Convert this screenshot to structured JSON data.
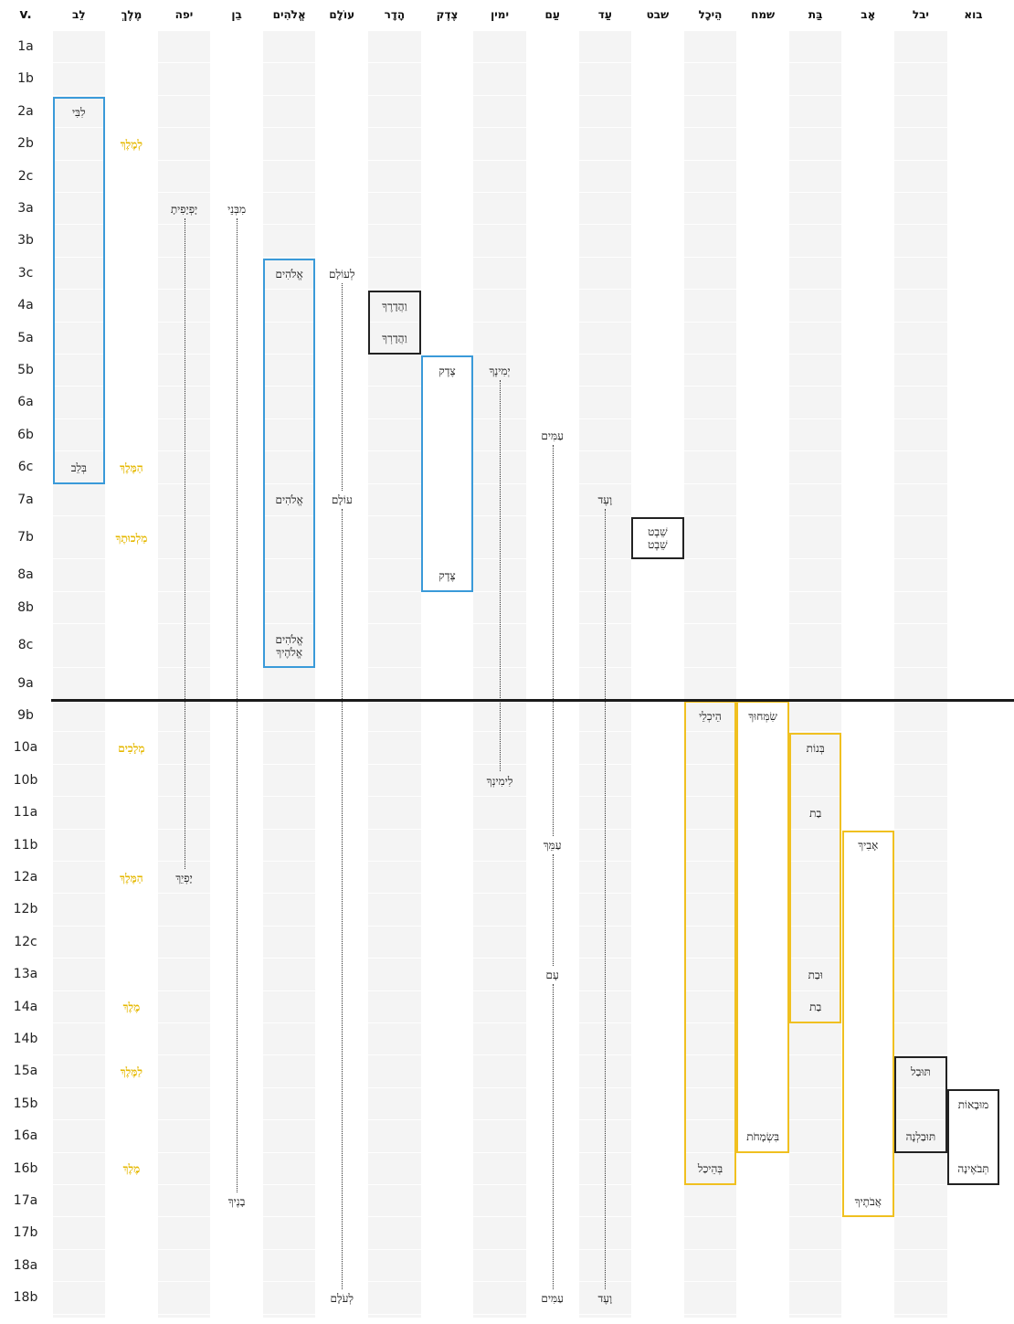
{
  "header": {
    "verse_label": "v.",
    "columns": [
      "לֵב",
      "מֶלֶךְ",
      "יפה",
      "בֵן",
      "אֱלֹהִים",
      "עוֹלָם",
      "הָדָר",
      "צֶדֶק",
      "ימין",
      "עַם",
      "עַד",
      "שבט",
      "הֵיכָל",
      "שמח",
      "בַּת",
      "אָב",
      "יבל",
      "בוא"
    ]
  },
  "verses": [
    "1a",
    "1b",
    "2a",
    "2b",
    "2c",
    "3a",
    "3b",
    "3c",
    "4a",
    "5a",
    "5b",
    "6a",
    "6b",
    "6c",
    "7a",
    "7b",
    "8a",
    "8b",
    "8c",
    "9a",
    "9b",
    "10a",
    "10b",
    "11a",
    "11b",
    "12a",
    "12b",
    "12c",
    "13a",
    "14a",
    "14b",
    "15a",
    "15b",
    "16a",
    "16b",
    "17a",
    "17b",
    "18a",
    "18b"
  ],
  "section_divider_after": "9a",
  "colors": {
    "blue": "#3a9ad9",
    "gold": "#f0c020",
    "black": "#222222",
    "gold_text": "#e5b800"
  },
  "words": [
    {
      "col": 0,
      "verse": "2a",
      "text": "לִבִּי"
    },
    {
      "col": 0,
      "verse": "6c",
      "text": "בְּלֵב"
    },
    {
      "col": 1,
      "verse": "2b",
      "text": "לְמֶלֶךְ",
      "gold": true
    },
    {
      "col": 1,
      "verse": "6c",
      "text": "הַמֶּלֶךְ",
      "gold": true
    },
    {
      "col": 1,
      "verse": "7b",
      "text": "מַלְכוּתֶךָ",
      "gold": true
    },
    {
      "col": 1,
      "verse": "10a",
      "text": "מְלָכִים",
      "gold": true
    },
    {
      "col": 1,
      "verse": "12a",
      "text": "הַמֶּלֶךְ",
      "gold": true
    },
    {
      "col": 1,
      "verse": "14a",
      "text": "מֶלֶךְ",
      "gold": true
    },
    {
      "col": 1,
      "verse": "15a",
      "text": "לַמֶּלֶךְ",
      "gold": true
    },
    {
      "col": 1,
      "verse": "16b",
      "text": "מֶלֶךְ",
      "gold": true
    },
    {
      "col": 2,
      "verse": "3a",
      "text": "יָפְיָפִיתָ"
    },
    {
      "col": 2,
      "verse": "12a",
      "text": "יָפְיֵךְ"
    },
    {
      "col": 3,
      "verse": "3a",
      "text": "מִבְּנֵי"
    },
    {
      "col": 3,
      "verse": "17a",
      "text": "בָנֶיךָ"
    },
    {
      "col": 4,
      "verse": "3c",
      "text": "אֱלֹהִים"
    },
    {
      "col": 4,
      "verse": "7a",
      "text": "אֱלֹהִים"
    },
    {
      "col": 4,
      "verse": "8c",
      "text": "אֱלֹהִים\nאֱלֹהֶיךָ"
    },
    {
      "col": 5,
      "verse": "3c",
      "text": "לְעוֹלָם"
    },
    {
      "col": 5,
      "verse": "7a",
      "text": "עוֹלָם"
    },
    {
      "col": 5,
      "verse": "18b",
      "text": "לְעֹלָם"
    },
    {
      "col": 6,
      "verse": "4a",
      "text": "וַהֲדָרֶךָ"
    },
    {
      "col": 6,
      "verse": "5a",
      "text": "וַהֲדָרְךָ"
    },
    {
      "col": 7,
      "verse": "5b",
      "text": "צֶדֶק"
    },
    {
      "col": 7,
      "verse": "8a",
      "text": "צֶּדֶק"
    },
    {
      "col": 8,
      "verse": "5b",
      "text": "יְמִינֶךָ"
    },
    {
      "col": 8,
      "verse": "10b",
      "text": "לִימִינְךָ"
    },
    {
      "col": 9,
      "verse": "6b",
      "text": "עַמִּים"
    },
    {
      "col": 9,
      "verse": "11b",
      "text": "עַמֵּךְ"
    },
    {
      "col": 9,
      "verse": "13a",
      "text": "עָם"
    },
    {
      "col": 9,
      "verse": "18b",
      "text": "עַמִּים"
    },
    {
      "col": 10,
      "verse": "7a",
      "text": "וָעֶד"
    },
    {
      "col": 10,
      "verse": "18b",
      "text": "וָעֶד"
    },
    {
      "col": 11,
      "verse": "7b",
      "text": "שֵׁבֶט\nשֵׁבֶט"
    },
    {
      "col": 12,
      "verse": "9b",
      "text": "הֵיכְלֵי"
    },
    {
      "col": 12,
      "verse": "16b",
      "text": "בְּהֵיכַל"
    },
    {
      "col": 13,
      "verse": "9b",
      "text": "שִׂמְּחוּךָ"
    },
    {
      "col": 13,
      "verse": "16a",
      "text": "בִּשְׂמָחֹת"
    },
    {
      "col": 14,
      "verse": "10a",
      "text": "בְּנוֹת"
    },
    {
      "col": 14,
      "verse": "11a",
      "text": "בַת"
    },
    {
      "col": 14,
      "verse": "13a",
      "text": "וּבַת"
    },
    {
      "col": 14,
      "verse": "14a",
      "text": "בַת"
    },
    {
      "col": 15,
      "verse": "11b",
      "text": "אָבִיךְ"
    },
    {
      "col": 15,
      "verse": "17a",
      "text": "אֲבֹתֶיךָ"
    },
    {
      "col": 16,
      "verse": "15a",
      "text": "תּוּבַל"
    },
    {
      "col": 16,
      "verse": "16a",
      "text": "תּוּבַלְנָה"
    },
    {
      "col": 17,
      "verse": "15b",
      "text": "מוּבָאוֹת"
    },
    {
      "col": 17,
      "verse": "16b",
      "text": "תְּבֹאֶינָה"
    }
  ],
  "boxes": [
    {
      "col": 0,
      "from": "2a",
      "to": "6c",
      "color": "blue"
    },
    {
      "col": 4,
      "from": "3c",
      "to": "8c",
      "color": "blue"
    },
    {
      "col": 7,
      "from": "5b",
      "to": "8a",
      "color": "blue"
    },
    {
      "col": 6,
      "from": "4a",
      "to": "5a",
      "color": "black"
    },
    {
      "col": 11,
      "from": "7b",
      "to": "7b",
      "color": "black"
    },
    {
      "col": 12,
      "from": "9b",
      "to": "16b",
      "color": "gold"
    },
    {
      "col": 13,
      "from": "9b",
      "to": "16a",
      "color": "gold"
    },
    {
      "col": 14,
      "from": "10a",
      "to": "14a",
      "color": "gold"
    },
    {
      "col": 15,
      "from": "11b",
      "to": "17a",
      "color": "gold"
    },
    {
      "col": 16,
      "from": "15a",
      "to": "16a",
      "color": "black"
    },
    {
      "col": 17,
      "from": "15b",
      "to": "16b",
      "color": "black"
    }
  ],
  "connectors": [
    {
      "col": 2,
      "from": "3a",
      "to": "12a"
    },
    {
      "col": 3,
      "from": "3a",
      "to": "17a"
    },
    {
      "col": 5,
      "from": "3c",
      "to": "7a"
    },
    {
      "col": 5,
      "from": "7a",
      "to": "18b"
    },
    {
      "col": 8,
      "from": "5b",
      "to": "10b"
    },
    {
      "col": 9,
      "from": "6b",
      "to": "11b"
    },
    {
      "col": 9,
      "from": "11b",
      "to": "13a"
    },
    {
      "col": 9,
      "from": "13a",
      "to": "18b"
    },
    {
      "col": 10,
      "from": "7a",
      "to": "18b"
    }
  ]
}
